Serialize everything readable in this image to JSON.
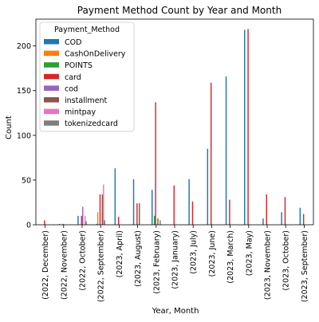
{
  "chart_data": {
    "type": "bar",
    "title": "Payment Method Count by Year and Month",
    "xlabel": "Year, Month",
    "ylabel": "Count",
    "ylim": [
      0,
      230
    ],
    "yticks": [
      0,
      50,
      100,
      150,
      200
    ],
    "legend": {
      "title": "Payment_Method",
      "position": "top-left"
    },
    "grid": false,
    "categories": [
      "(2022, December)",
      "(2022, November)",
      "(2022, October)",
      "(2022, September)",
      "(2023, April)",
      "(2023, August)",
      "(2023, February)",
      "(2023, January)",
      "(2023, July)",
      "(2023, June)",
      "(2023, March)",
      "(2023, May)",
      "(2023, November)",
      "(2023, October)",
      "(2023, September)"
    ],
    "series": [
      {
        "name": "COD",
        "color": "#1f77b4",
        "values": [
          0,
          1,
          10,
          1,
          63,
          51,
          39,
          0,
          51,
          85,
          166,
          218,
          7,
          14,
          19
        ]
      },
      {
        "name": "CashOnDelivery",
        "color": "#ff7f0e",
        "values": [
          0,
          0,
          0,
          14,
          0,
          0,
          0,
          0,
          0,
          0,
          0,
          0,
          0,
          0,
          0
        ]
      },
      {
        "name": "POINTS",
        "color": "#2ca02c",
        "values": [
          0,
          0,
          0,
          0,
          0,
          0,
          10,
          0,
          0,
          0,
          0,
          0,
          0,
          0,
          0
        ]
      },
      {
        "name": "card",
        "color": "#d62728",
        "values": [
          5,
          1,
          10,
          34,
          9,
          24,
          137,
          44,
          26,
          159,
          28,
          219,
          34,
          31,
          12
        ]
      },
      {
        "name": "cod",
        "color": "#9467bd",
        "values": [
          0,
          0,
          20,
          0,
          0,
          0,
          0,
          0,
          0,
          0,
          0,
          0,
          0,
          0,
          0
        ]
      },
      {
        "name": "installment",
        "color": "#8c564b",
        "values": [
          0,
          0,
          0,
          34,
          0,
          24,
          7,
          0,
          0,
          0,
          0,
          0,
          0,
          0,
          0
        ]
      },
      {
        "name": "mintpay",
        "color": "#e377c2",
        "values": [
          0,
          0,
          10,
          45,
          0,
          0,
          0,
          0,
          0,
          0,
          0,
          0,
          0,
          0,
          0
        ]
      },
      {
        "name": "tokenizedcard",
        "color": "#7f7f7f",
        "values": [
          0,
          0,
          4,
          5,
          0,
          0,
          5,
          0,
          0,
          0,
          0,
          0,
          0,
          0,
          0
        ]
      }
    ]
  }
}
